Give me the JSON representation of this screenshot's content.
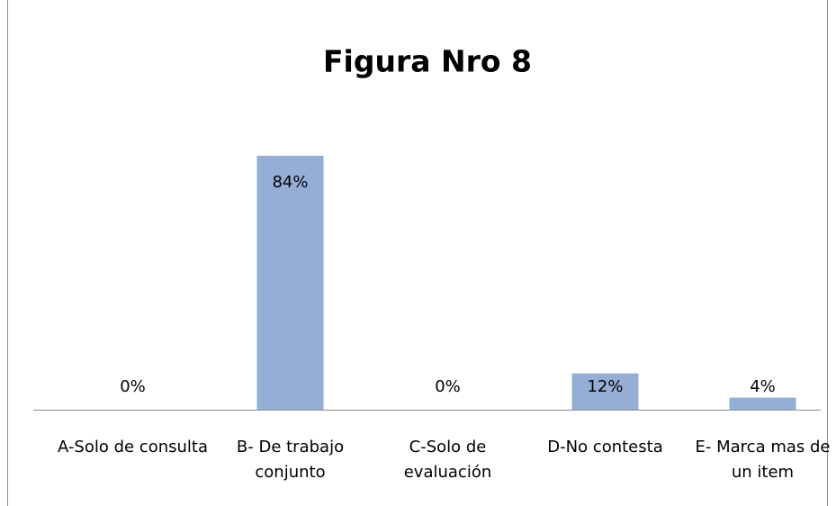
{
  "chart_data": {
    "type": "bar",
    "title": "Figura Nro 8",
    "categories": [
      "A-Solo de consulta",
      "B- De trabajo conjunto",
      "C-Solo de evaluación",
      "D-No contesta",
      "E- Marca mas de un item"
    ],
    "values": [
      0,
      84,
      0,
      12,
      4
    ],
    "value_labels": [
      "0%",
      "84%",
      "0%",
      "12%",
      "4%"
    ],
    "color": "#95aed5"
  }
}
